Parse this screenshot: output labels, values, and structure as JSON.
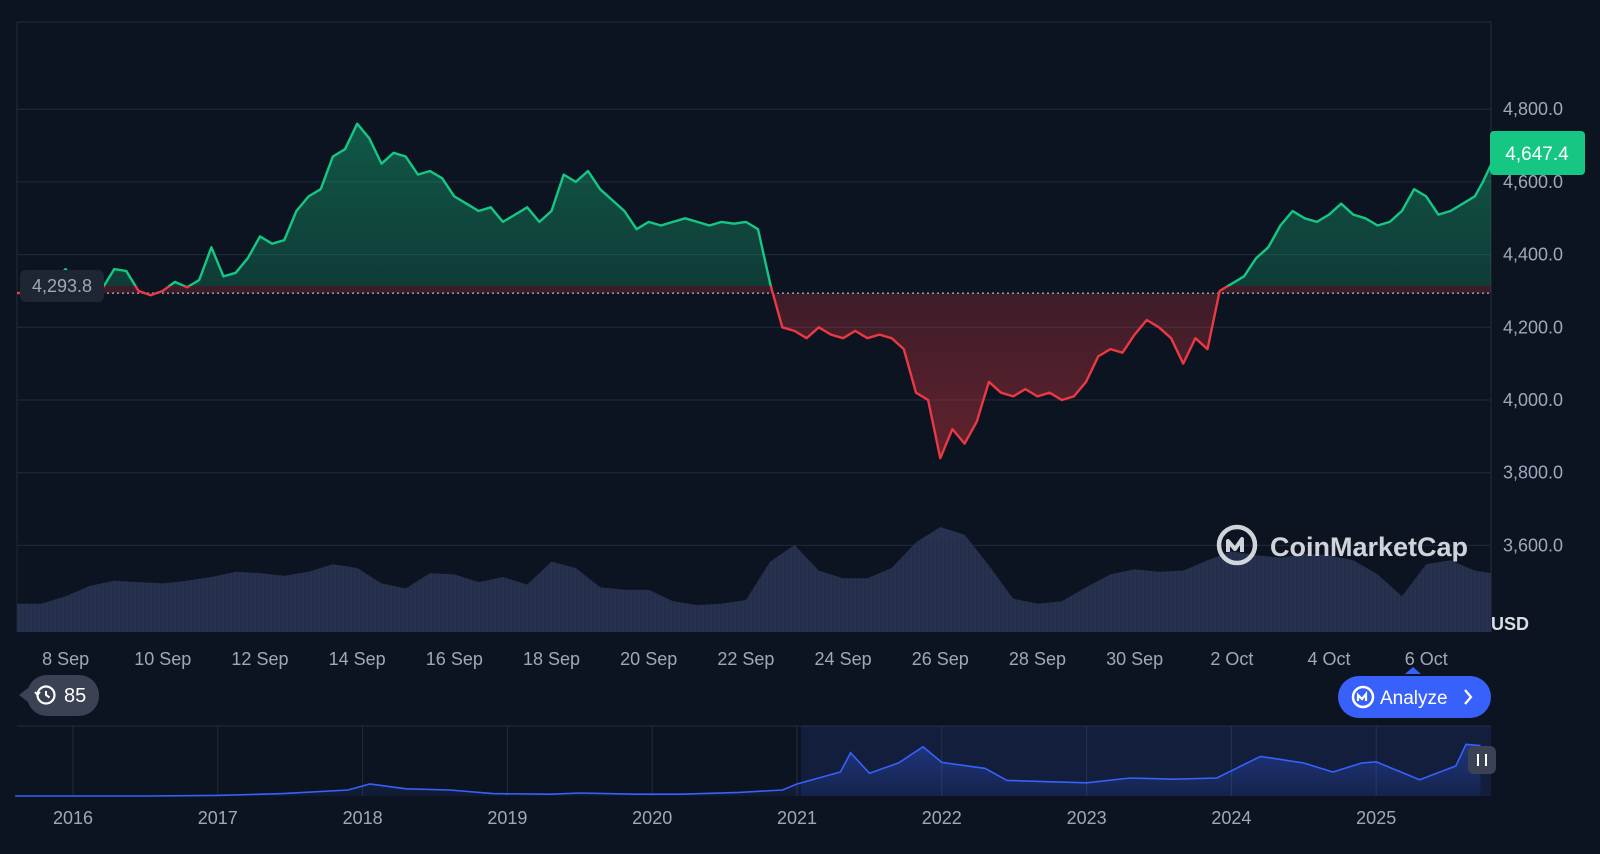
{
  "watermark": "CoinMarketCap",
  "currency": "USD",
  "reference_price_label": "4,293.8",
  "current_price_label": "4,647.4",
  "history_count": "85",
  "analyze_label": "Analyze",
  "colors": {
    "background": "#0d1421",
    "up": "#16c784",
    "down": "#ea3943",
    "volume": "#2a3554",
    "navigator_line": "#3861fb",
    "analyze_button": "#3861fb"
  },
  "chart_data": [
    {
      "type": "area",
      "x_axis": "date",
      "xlabel": "",
      "ylabel": "",
      "ylim": [
        3450,
        5000
      ],
      "y_ticks": [
        3600,
        3800,
        4000,
        4200,
        4400,
        4600,
        4800
      ],
      "y_tick_labels": [
        "3,600.0",
        "3,800.0",
        "4,000.0",
        "4,200.0",
        "4,400.0",
        "4,600.0",
        "4,800.0"
      ],
      "x_ticks": [
        "8 Sep",
        "10 Sep",
        "12 Sep",
        "14 Sep",
        "16 Sep",
        "18 Sep",
        "20 Sep",
        "22 Sep",
        "24 Sep",
        "26 Sep",
        "28 Sep",
        "30 Sep",
        "2 Oct",
        "4 Oct",
        "6 Oct"
      ],
      "baseline": 4293.8,
      "grid": true,
      "series": [
        {
          "values": [
            [
              "2025-09-07 00:00",
              4293.8
            ],
            [
              "2025-09-07 12:00",
              4300
            ],
            [
              "2025-09-07 18:00",
              4325
            ],
            [
              "2025-09-08 00:00",
              4360
            ],
            [
              "2025-09-08 06:00",
              4310
            ],
            [
              "2025-09-08 12:00",
              4330
            ],
            [
              "2025-09-08 18:00",
              4305
            ],
            [
              "2025-09-09 00:00",
              4360
            ],
            [
              "2025-09-09 06:00",
              4355
            ],
            [
              "2025-09-09 12:00",
              4300
            ],
            [
              "2025-09-09 18:00",
              4288
            ],
            [
              "2025-09-10 00:00",
              4300
            ],
            [
              "2025-09-10 06:00",
              4325
            ],
            [
              "2025-09-10 12:00",
              4310
            ],
            [
              "2025-09-10 18:00",
              4330
            ],
            [
              "2025-09-11 00:00",
              4420
            ],
            [
              "2025-09-11 06:00",
              4340
            ],
            [
              "2025-09-11 12:00",
              4350
            ],
            [
              "2025-09-11 18:00",
              4390
            ],
            [
              "2025-09-12 00:00",
              4450
            ],
            [
              "2025-09-12 06:00",
              4430
            ],
            [
              "2025-09-12 12:00",
              4440
            ],
            [
              "2025-09-12 18:00",
              4520
            ],
            [
              "2025-09-13 00:00",
              4560
            ],
            [
              "2025-09-13 06:00",
              4580
            ],
            [
              "2025-09-13 12:00",
              4670
            ],
            [
              "2025-09-13 18:00",
              4690
            ],
            [
              "2025-09-14 00:00",
              4760
            ],
            [
              "2025-09-14 06:00",
              4720
            ],
            [
              "2025-09-14 12:00",
              4650
            ],
            [
              "2025-09-14 18:00",
              4680
            ],
            [
              "2025-09-15 00:00",
              4670
            ],
            [
              "2025-09-15 06:00",
              4620
            ],
            [
              "2025-09-15 12:00",
              4630
            ],
            [
              "2025-09-15 18:00",
              4610
            ],
            [
              "2025-09-16 00:00",
              4560
            ],
            [
              "2025-09-16 06:00",
              4540
            ],
            [
              "2025-09-16 12:00",
              4520
            ],
            [
              "2025-09-16 18:00",
              4530
            ],
            [
              "2025-09-17 00:00",
              4490
            ],
            [
              "2025-09-17 06:00",
              4510
            ],
            [
              "2025-09-17 12:00",
              4530
            ],
            [
              "2025-09-17 18:00",
              4490
            ],
            [
              "2025-09-18 00:00",
              4520
            ],
            [
              "2025-09-18 06:00",
              4620
            ],
            [
              "2025-09-18 12:00",
              4600
            ],
            [
              "2025-09-18 18:00",
              4630
            ],
            [
              "2025-09-19 00:00",
              4580
            ],
            [
              "2025-09-19 06:00",
              4550
            ],
            [
              "2025-09-19 12:00",
              4520
            ],
            [
              "2025-09-19 18:00",
              4470
            ],
            [
              "2025-09-20 00:00",
              4490
            ],
            [
              "2025-09-20 06:00",
              4480
            ],
            [
              "2025-09-20 12:00",
              4490
            ],
            [
              "2025-09-20 18:00",
              4500
            ],
            [
              "2025-09-21 00:00",
              4490
            ],
            [
              "2025-09-21 06:00",
              4480
            ],
            [
              "2025-09-21 12:00",
              4490
            ],
            [
              "2025-09-21 18:00",
              4485
            ],
            [
              "2025-09-22 00:00",
              4490
            ],
            [
              "2025-09-22 06:00",
              4470
            ],
            [
              "2025-09-22 12:00",
              4320
            ],
            [
              "2025-09-22 18:00",
              4200
            ],
            [
              "2025-09-23 00:00",
              4190
            ],
            [
              "2025-09-23 06:00",
              4170
            ],
            [
              "2025-09-23 12:00",
              4200
            ],
            [
              "2025-09-23 18:00",
              4180
            ],
            [
              "2025-09-24 00:00",
              4170
            ],
            [
              "2025-09-24 06:00",
              4190
            ],
            [
              "2025-09-24 12:00",
              4170
            ],
            [
              "2025-09-24 18:00",
              4180
            ],
            [
              "2025-09-25 00:00",
              4170
            ],
            [
              "2025-09-25 06:00",
              4140
            ],
            [
              "2025-09-25 12:00",
              4020
            ],
            [
              "2025-09-25 18:00",
              4000
            ],
            [
              "2025-09-26 00:00",
              3840
            ],
            [
              "2025-09-26 06:00",
              3920
            ],
            [
              "2025-09-26 12:00",
              3880
            ],
            [
              "2025-09-26 18:00",
              3940
            ],
            [
              "2025-09-27 00:00",
              4050
            ],
            [
              "2025-09-27 06:00",
              4020
            ],
            [
              "2025-09-27 12:00",
              4010
            ],
            [
              "2025-09-27 18:00",
              4030
            ],
            [
              "2025-09-28 00:00",
              4010
            ],
            [
              "2025-09-28 06:00",
              4020
            ],
            [
              "2025-09-28 12:00",
              4000
            ],
            [
              "2025-09-28 18:00",
              4010
            ],
            [
              "2025-09-29 00:00",
              4050
            ],
            [
              "2025-09-29 06:00",
              4120
            ],
            [
              "2025-09-29 12:00",
              4140
            ],
            [
              "2025-09-29 18:00",
              4130
            ],
            [
              "2025-09-30 00:00",
              4180
            ],
            [
              "2025-09-30 06:00",
              4220
            ],
            [
              "2025-09-30 12:00",
              4200
            ],
            [
              "2025-09-30 18:00",
              4170
            ],
            [
              "2025-10-01 00:00",
              4100
            ],
            [
              "2025-10-01 06:00",
              4170
            ],
            [
              "2025-10-01 12:00",
              4140
            ],
            [
              "2025-10-01 18:00",
              4300
            ],
            [
              "2025-10-02 00:00",
              4320
            ],
            [
              "2025-10-02 06:00",
              4340
            ],
            [
              "2025-10-02 12:00",
              4390
            ],
            [
              "2025-10-02 18:00",
              4420
            ],
            [
              "2025-10-03 00:00",
              4480
            ],
            [
              "2025-10-03 06:00",
              4520
            ],
            [
              "2025-10-03 12:00",
              4500
            ],
            [
              "2025-10-03 18:00",
              4490
            ],
            [
              "2025-10-04 00:00",
              4510
            ],
            [
              "2025-10-04 06:00",
              4540
            ],
            [
              "2025-10-04 12:00",
              4510
            ],
            [
              "2025-10-04 18:00",
              4500
            ],
            [
              "2025-10-05 00:00",
              4480
            ],
            [
              "2025-10-05 06:00",
              4490
            ],
            [
              "2025-10-05 12:00",
              4520
            ],
            [
              "2025-10-05 18:00",
              4580
            ],
            [
              "2025-10-06 00:00",
              4560
            ],
            [
              "2025-10-06 06:00",
              4510
            ],
            [
              "2025-10-06 12:00",
              4520
            ],
            [
              "2025-10-06 18:00",
              4540
            ],
            [
              "2025-10-07 00:00",
              4560
            ],
            [
              "2025-10-07 04:00",
              4600
            ],
            [
              "2025-10-07 08:00",
              4647.4
            ]
          ]
        }
      ],
      "volume": {
        "values": [
          [
            "2025-09-07 00:00",
            0.22
          ],
          [
            "2025-09-07 12:00",
            0.22
          ],
          [
            "2025-09-08 00:00",
            0.28
          ],
          [
            "2025-09-08 12:00",
            0.36
          ],
          [
            "2025-09-09 00:00",
            0.4
          ],
          [
            "2025-09-09 12:00",
            0.39
          ],
          [
            "2025-09-10 00:00",
            0.38
          ],
          [
            "2025-09-10 12:00",
            0.4
          ],
          [
            "2025-09-11 00:00",
            0.43
          ],
          [
            "2025-09-11 12:00",
            0.47
          ],
          [
            "2025-09-12 00:00",
            0.46
          ],
          [
            "2025-09-12 12:00",
            0.44
          ],
          [
            "2025-09-13 00:00",
            0.47
          ],
          [
            "2025-09-13 12:00",
            0.53
          ],
          [
            "2025-09-14 00:00",
            0.5
          ],
          [
            "2025-09-14 12:00",
            0.38
          ],
          [
            "2025-09-15 00:00",
            0.34
          ],
          [
            "2025-09-15 12:00",
            0.46
          ],
          [
            "2025-09-16 00:00",
            0.45
          ],
          [
            "2025-09-16 12:00",
            0.39
          ],
          [
            "2025-09-17 00:00",
            0.43
          ],
          [
            "2025-09-17 12:00",
            0.37
          ],
          [
            "2025-09-18 00:00",
            0.55
          ],
          [
            "2025-09-18 12:00",
            0.5
          ],
          [
            "2025-09-19 00:00",
            0.35
          ],
          [
            "2025-09-19 12:00",
            0.33
          ],
          [
            "2025-09-20 00:00",
            0.33
          ],
          [
            "2025-09-20 12:00",
            0.24
          ],
          [
            "2025-09-21 00:00",
            0.21
          ],
          [
            "2025-09-21 12:00",
            0.22
          ],
          [
            "2025-09-22 00:00",
            0.25
          ],
          [
            "2025-09-22 12:00",
            0.55
          ],
          [
            "2025-09-23 00:00",
            0.68
          ],
          [
            "2025-09-23 12:00",
            0.48
          ],
          [
            "2025-09-24 00:00",
            0.42
          ],
          [
            "2025-09-24 12:00",
            0.42
          ],
          [
            "2025-09-25 00:00",
            0.5
          ],
          [
            "2025-09-25 12:00",
            0.7
          ],
          [
            "2025-09-26 00:00",
            0.82
          ],
          [
            "2025-09-26 12:00",
            0.76
          ],
          [
            "2025-09-27 00:00",
            0.52
          ],
          [
            "2025-09-27 12:00",
            0.26
          ],
          [
            "2025-09-28 00:00",
            0.22
          ],
          [
            "2025-09-28 12:00",
            0.24
          ],
          [
            "2025-09-29 00:00",
            0.35
          ],
          [
            "2025-09-29 12:00",
            0.45
          ],
          [
            "2025-09-30 00:00",
            0.49
          ],
          [
            "2025-09-30 12:00",
            0.47
          ],
          [
            "2025-10-01 00:00",
            0.48
          ],
          [
            "2025-10-01 12:00",
            0.56
          ],
          [
            "2025-10-02 00:00",
            0.63
          ],
          [
            "2025-10-02 12:00",
            0.6
          ],
          [
            "2025-10-03 00:00",
            0.58
          ],
          [
            "2025-10-03 12:00",
            0.61
          ],
          [
            "2025-10-04 00:00",
            0.6
          ],
          [
            "2025-10-04 12:00",
            0.56
          ],
          [
            "2025-10-05 00:00",
            0.45
          ],
          [
            "2025-10-05 12:00",
            0.28
          ],
          [
            "2025-10-06 00:00",
            0.53
          ],
          [
            "2025-10-06 12:00",
            0.56
          ],
          [
            "2025-10-07 00:00",
            0.48
          ],
          [
            "2025-10-07 08:00",
            0.46
          ]
        ]
      }
    },
    {
      "type": "area",
      "x_axis": "year",
      "x_ticks": [
        "2016",
        "2017",
        "2018",
        "2019",
        "2020",
        "2021",
        "2022",
        "2023",
        "2024",
        "2025"
      ],
      "ylim": [
        0,
        1
      ],
      "series": [
        {
          "values": [
            [
              2015.6,
              0.0
            ],
            [
              2016.5,
              0.0
            ],
            [
              2017.0,
              0.01
            ],
            [
              2017.45,
              0.04
            ],
            [
              2017.9,
              0.1
            ],
            [
              2018.05,
              0.2
            ],
            [
              2018.3,
              0.12
            ],
            [
              2018.6,
              0.1
            ],
            [
              2018.9,
              0.04
            ],
            [
              2019.3,
              0.03
            ],
            [
              2019.5,
              0.05
            ],
            [
              2019.9,
              0.03
            ],
            [
              2020.2,
              0.03
            ],
            [
              2020.6,
              0.06
            ],
            [
              2020.9,
              0.1
            ],
            [
              2021.0,
              0.2
            ],
            [
              2021.3,
              0.4
            ],
            [
              2021.37,
              0.72
            ],
            [
              2021.5,
              0.38
            ],
            [
              2021.7,
              0.55
            ],
            [
              2021.87,
              0.82
            ],
            [
              2022.0,
              0.56
            ],
            [
              2022.3,
              0.46
            ],
            [
              2022.45,
              0.26
            ],
            [
              2022.7,
              0.24
            ],
            [
              2023.0,
              0.22
            ],
            [
              2023.3,
              0.3
            ],
            [
              2023.6,
              0.28
            ],
            [
              2023.9,
              0.3
            ],
            [
              2024.2,
              0.66
            ],
            [
              2024.5,
              0.55
            ],
            [
              2024.7,
              0.4
            ],
            [
              2024.9,
              0.55
            ],
            [
              2025.0,
              0.57
            ],
            [
              2025.3,
              0.27
            ],
            [
              2025.55,
              0.5
            ],
            [
              2025.62,
              0.86
            ],
            [
              2025.72,
              0.84
            ]
          ]
        }
      ]
    }
  ]
}
